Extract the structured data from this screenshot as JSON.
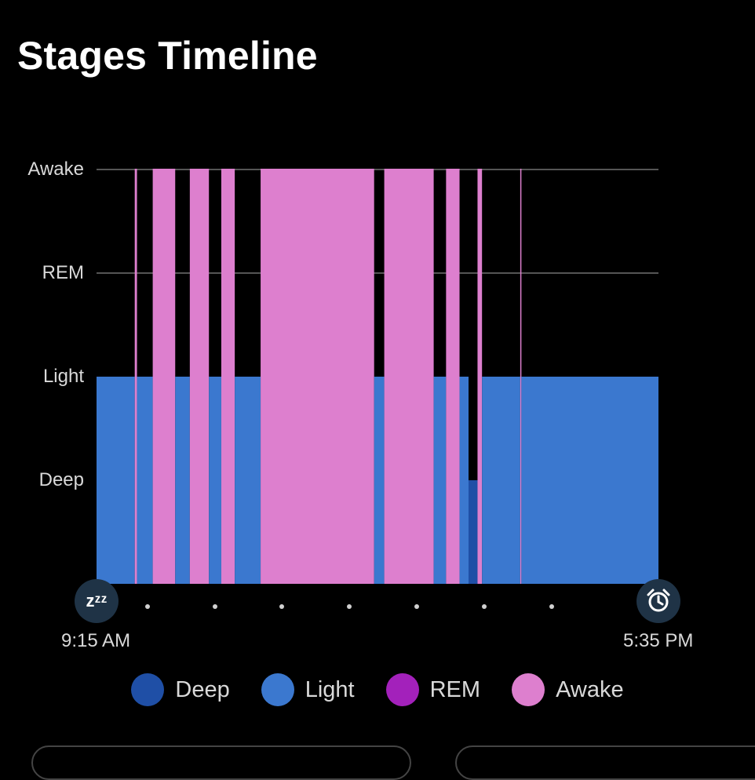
{
  "title": "Stages Timeline",
  "y_axis": {
    "awake": "Awake",
    "rem": "REM",
    "light": "Light",
    "deep": "Deep"
  },
  "start_time": "9:15 AM",
  "end_time": "5:35 PM",
  "icons": {
    "start": "sleep-zzz-icon",
    "start_glyph": "zᶻᶻ",
    "end": "alarm-clock-icon"
  },
  "colors": {
    "deep": "#1f4fa6",
    "light": "#3b78cf",
    "rem": "#a321bb",
    "awake": "#dd7fce",
    "background": "#000000"
  },
  "legend": [
    {
      "key": "deep",
      "label": "Deep"
    },
    {
      "key": "light",
      "label": "Light"
    },
    {
      "key": "rem",
      "label": "REM"
    },
    {
      "key": "awake",
      "label": "Awake"
    }
  ],
  "chart_data": {
    "type": "area",
    "title": "Stages Timeline",
    "x_range": [
      "9:15 AM",
      "5:35 PM"
    ],
    "y_categories": [
      "Deep",
      "Light",
      "REM",
      "Awake"
    ],
    "grid": true,
    "segments": [
      {
        "start": "9:15 AM",
        "end": "9:49 AM",
        "stage": "Light"
      },
      {
        "start": "9:49 AM",
        "end": "9:51 AM",
        "stage": "Awake"
      },
      {
        "start": "9:51 AM",
        "end": "10:05 AM",
        "stage": "Light"
      },
      {
        "start": "10:05 AM",
        "end": "10:25 AM",
        "stage": "Awake"
      },
      {
        "start": "10:25 AM",
        "end": "10:38 AM",
        "stage": "Light"
      },
      {
        "start": "10:38 AM",
        "end": "10:55 AM",
        "stage": "Awake"
      },
      {
        "start": "10:55 AM",
        "end": "11:06 AM",
        "stage": "Light"
      },
      {
        "start": "11:06 AM",
        "end": "11:18 AM",
        "stage": "Awake"
      },
      {
        "start": "11:18 AM",
        "end": "11:41 AM",
        "stage": "Light"
      },
      {
        "start": "11:41 AM",
        "end": "1:22 PM",
        "stage": "Awake"
      },
      {
        "start": "1:22 PM",
        "end": "1:31 PM",
        "stage": "Light"
      },
      {
        "start": "1:31 PM",
        "end": "2:15 PM",
        "stage": "Awake"
      },
      {
        "start": "2:15 PM",
        "end": "2:26 PM",
        "stage": "Light"
      },
      {
        "start": "2:26 PM",
        "end": "2:38 PM",
        "stage": "Awake"
      },
      {
        "start": "2:38 PM",
        "end": "2:46 PM",
        "stage": "Light"
      },
      {
        "start": "2:46 PM",
        "end": "2:54 PM",
        "stage": "Deep"
      },
      {
        "start": "2:54 PM",
        "end": "2:58 PM",
        "stage": "Awake"
      },
      {
        "start": "2:58 PM",
        "end": "3:32 PM",
        "stage": "Light"
      },
      {
        "start": "3:32 PM",
        "end": "3:33 PM",
        "stage": "Awake"
      },
      {
        "start": "3:33 PM",
        "end": "5:35 PM",
        "stage": "Light"
      }
    ]
  }
}
